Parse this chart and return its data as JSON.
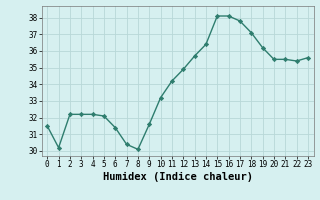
{
  "x": [
    0,
    1,
    2,
    3,
    4,
    5,
    6,
    7,
    8,
    9,
    10,
    11,
    12,
    13,
    14,
    15,
    16,
    17,
    18,
    19,
    20,
    21,
    22,
    23
  ],
  "y": [
    31.5,
    30.2,
    32.2,
    32.2,
    32.2,
    32.1,
    31.4,
    30.4,
    30.1,
    31.6,
    33.2,
    34.2,
    34.9,
    35.7,
    36.4,
    38.1,
    38.1,
    37.8,
    37.1,
    36.2,
    35.5,
    35.5,
    35.4,
    35.6
  ],
  "line_color": "#2e7d6e",
  "marker": "D",
  "marker_size": 2.2,
  "linewidth": 1.0,
  "background_color": "#d6f0f0",
  "grid_color": "#b8d8d8",
  "xlabel": "Humidex (Indice chaleur)",
  "xlim": [
    -0.5,
    23.5
  ],
  "ylim": [
    29.7,
    38.7
  ],
  "yticks": [
    30,
    31,
    32,
    33,
    34,
    35,
    36,
    37,
    38
  ],
  "xticks": [
    0,
    1,
    2,
    3,
    4,
    5,
    6,
    7,
    8,
    9,
    10,
    11,
    12,
    13,
    14,
    15,
    16,
    17,
    18,
    19,
    20,
    21,
    22,
    23
  ],
  "tick_labelsize": 5.5,
  "xlabel_fontsize": 7.5
}
